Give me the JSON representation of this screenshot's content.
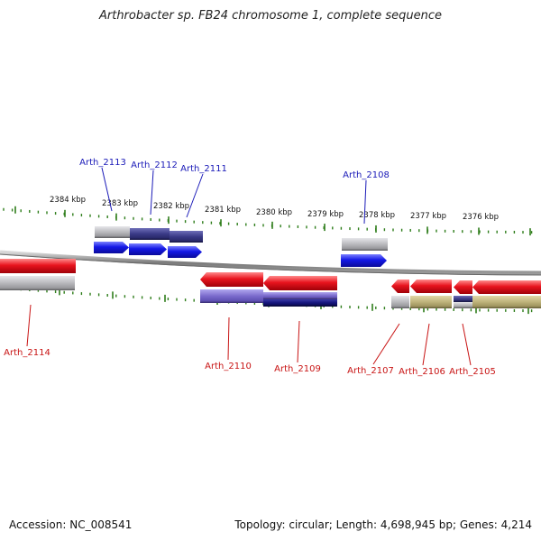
{
  "title": "Arthrobacter sp. FB24 chromosome 1, complete sequence",
  "accession": "Accession: NC_008541",
  "summary": "Topology: circular; Length: 4,698,945 bp; Genes: 4,214",
  "colors": {
    "ticks": "#2e7d1a",
    "label_plus": "#1a1ab8",
    "label_minus": "#c81414",
    "gene_red": "#e8141e",
    "gene_blue": "#1418e6",
    "gray_block": "#b8b8bc",
    "navy_block": "#3a3a86",
    "violet_block": "#7a6acc",
    "dark_navy_block": "#14147a",
    "khaki_block": "#bdb27a"
  },
  "scale_labels": [
    "2384 kbp",
    "2383 kbp",
    "2382 kbp",
    "2381 kbp",
    "2380 kbp",
    "2379 kbp",
    "2378 kbp",
    "2377 kbp",
    "2376 kbp"
  ],
  "genes_plus": [
    {
      "label": "Arth_2113"
    },
    {
      "label": "Arth_2112"
    },
    {
      "label": "Arth_2111"
    },
    {
      "label": "Arth_2108"
    }
  ],
  "genes_minus": [
    {
      "label": "Arth_2114"
    },
    {
      "label": "Arth_2110"
    },
    {
      "label": "Arth_2109"
    },
    {
      "label": "Arth_2107"
    },
    {
      "label": "Arth_2106"
    },
    {
      "label": "Arth_2105"
    }
  ]
}
